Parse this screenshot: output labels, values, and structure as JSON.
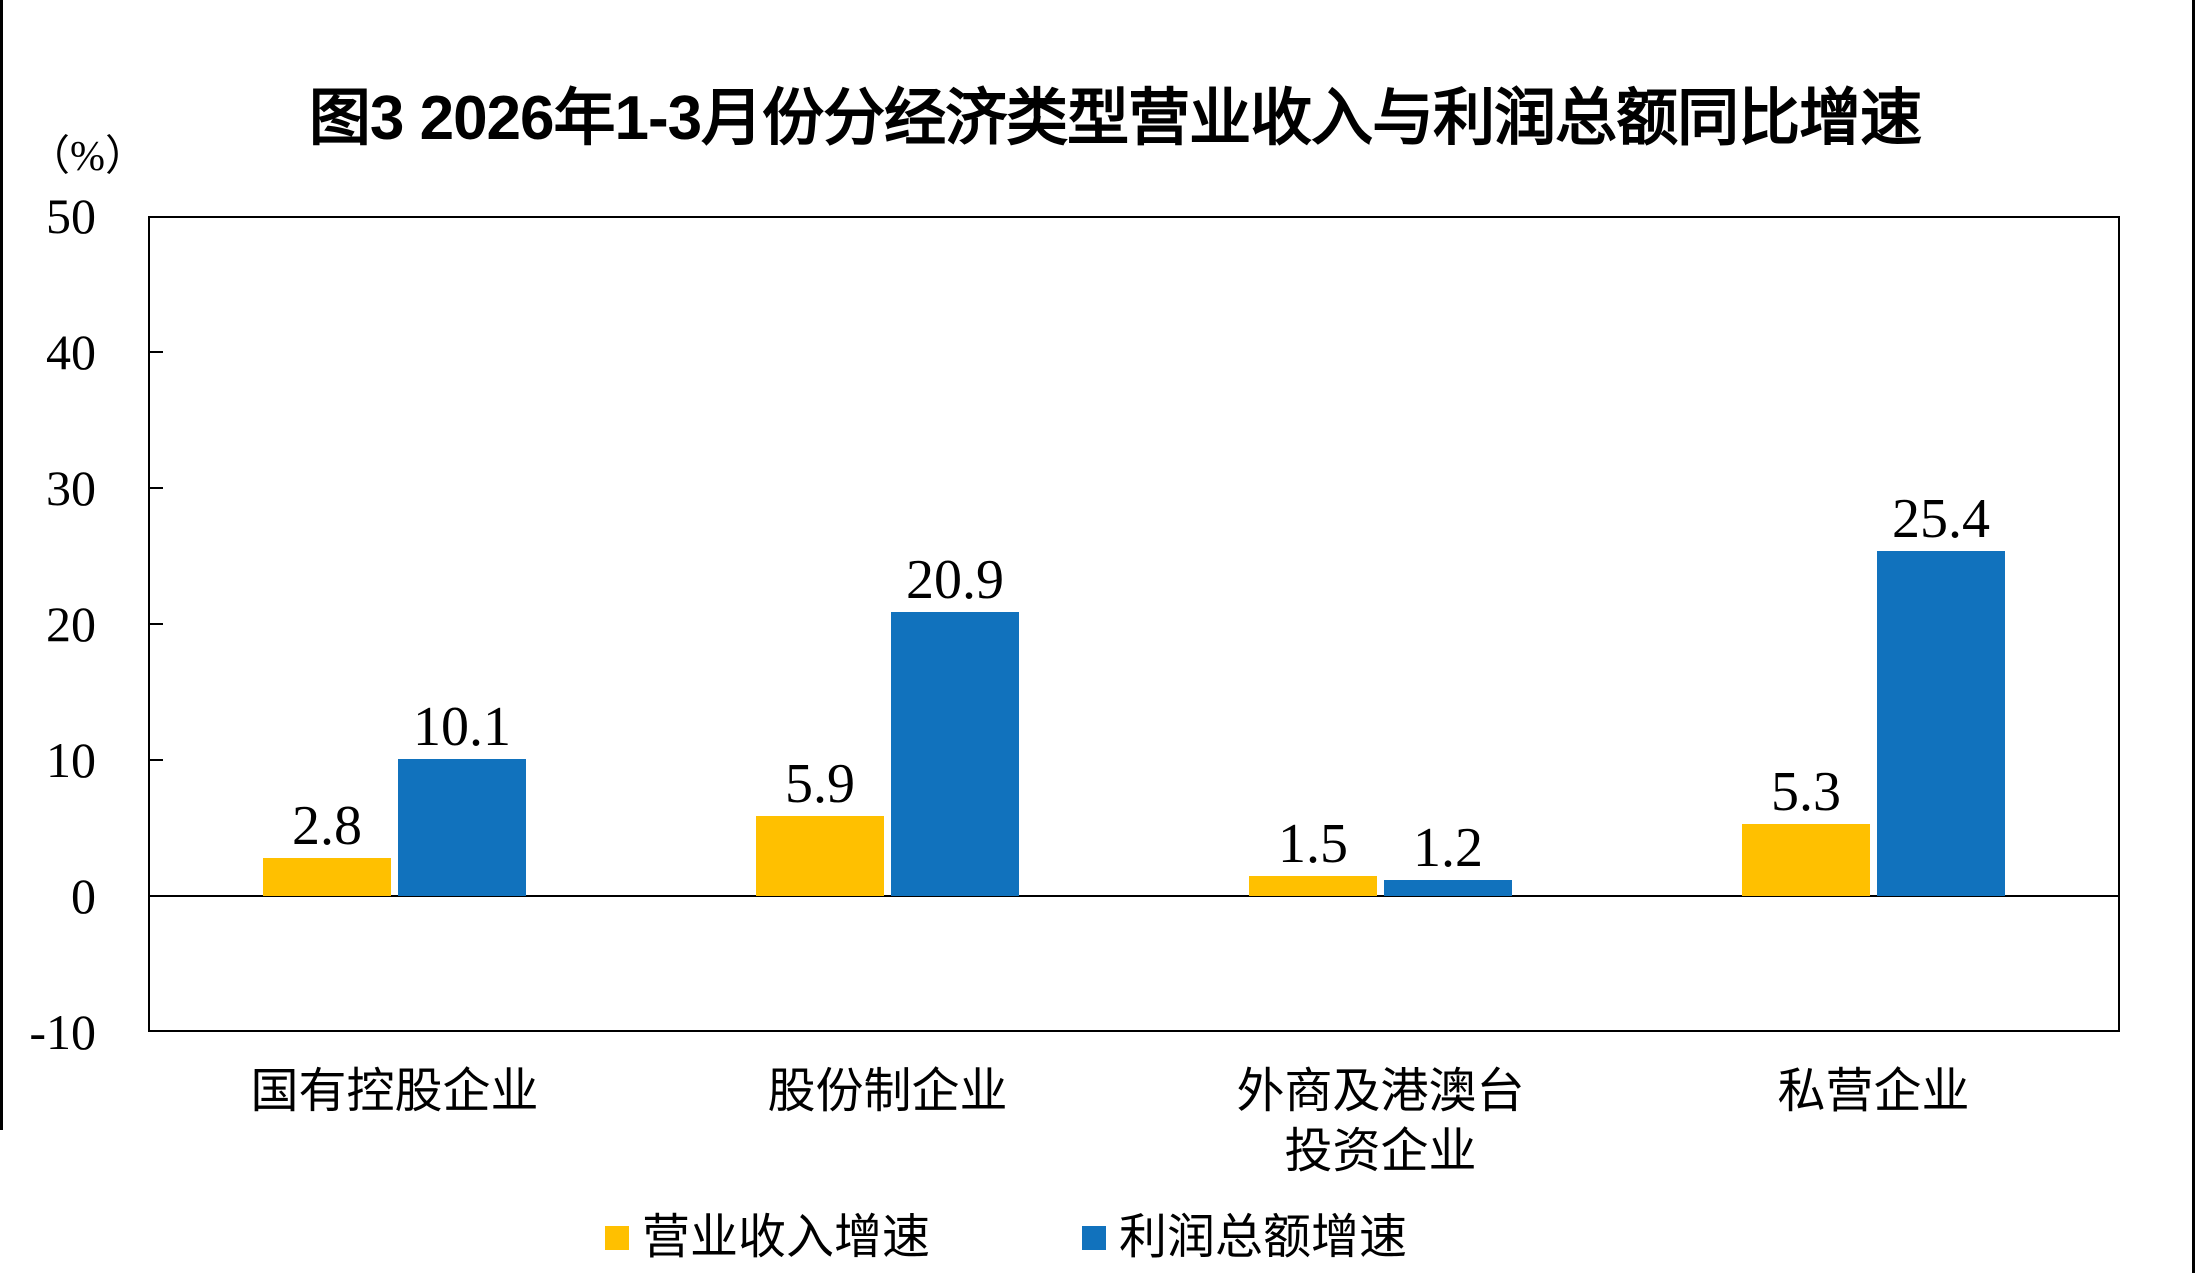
{
  "page": {
    "title": "图3 2026年1-3月份分经济类型营业收入与利润总额同比增速"
  },
  "y_axis": {
    "unit_label": "（%）",
    "ticks": [
      50,
      40,
      30,
      20,
      10,
      0,
      -10
    ]
  },
  "legend": {
    "items": [
      {
        "label": "营业收入增速",
        "color": "#FFC000"
      },
      {
        "label": "利润总额增速",
        "color": "#1172BD"
      }
    ]
  },
  "chart_data": {
    "type": "bar",
    "title": "图3 2026年1-3月份分经济类型营业收入与利润总额同比增速",
    "ylabel": "（%）",
    "ylim": [
      -10,
      50
    ],
    "y_tick_step": 10,
    "grid": false,
    "legend_position": "bottom",
    "value_labels_shown": true,
    "categories": [
      "国有控股企业",
      "股份制企业",
      "外商及港澳台投资企业",
      "私营企业"
    ],
    "categories_display_lines": [
      [
        "国有控股企业"
      ],
      [
        "股份制企业"
      ],
      [
        "外商及港澳台",
        "投资企业"
      ],
      [
        "私营企业"
      ]
    ],
    "series": [
      {
        "name": "营业收入增速",
        "color": "#FFC000",
        "values": [
          2.8,
          5.9,
          1.5,
          5.3
        ]
      },
      {
        "name": "利润总额增速",
        "color": "#1172BD",
        "values": [
          10.1,
          20.9,
          1.2,
          25.4
        ]
      }
    ]
  }
}
